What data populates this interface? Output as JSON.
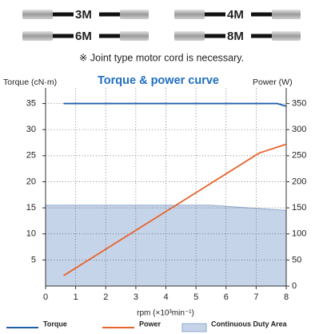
{
  "header": {
    "cables": [
      "3M",
      "4M",
      "6M",
      "8M"
    ],
    "note": "※ Joint type motor cord is necessary."
  },
  "chart_data": {
    "type": "line",
    "title": "Torque & power curve",
    "y_label": "Torque (cN·m)",
    "y2_label": "Power (W)",
    "x_label": "rpm (×10³min⁻¹)",
    "xlim": [
      0,
      8
    ],
    "xticks": [
      0,
      1,
      2,
      3,
      4,
      5,
      6,
      7,
      8
    ],
    "ylim": [
      0,
      38
    ],
    "yticks": [
      5,
      10,
      15,
      20,
      25,
      30,
      35
    ],
    "y2lim": [
      0,
      380
    ],
    "y2ticks": [
      0,
      50,
      100,
      150,
      200,
      250,
      300,
      350
    ],
    "grid": true,
    "series": [
      {
        "name": "Torque",
        "type": "line",
        "color": "#1f5fa8",
        "x": [
          0.6,
          7.7,
          8
        ],
        "values": [
          35,
          35,
          34.5
        ]
      },
      {
        "name": "Power",
        "type": "line",
        "color": "#e8642a",
        "axis": "y2",
        "x": [
          0.6,
          7.1,
          8
        ],
        "values": [
          20,
          255,
          272
        ]
      },
      {
        "name": "Continuous Duty Area",
        "type": "area",
        "color": "#c6d4ea",
        "x": [
          0,
          5.5,
          8
        ],
        "values": [
          15.5,
          15.5,
          14.5
        ]
      }
    ]
  }
}
